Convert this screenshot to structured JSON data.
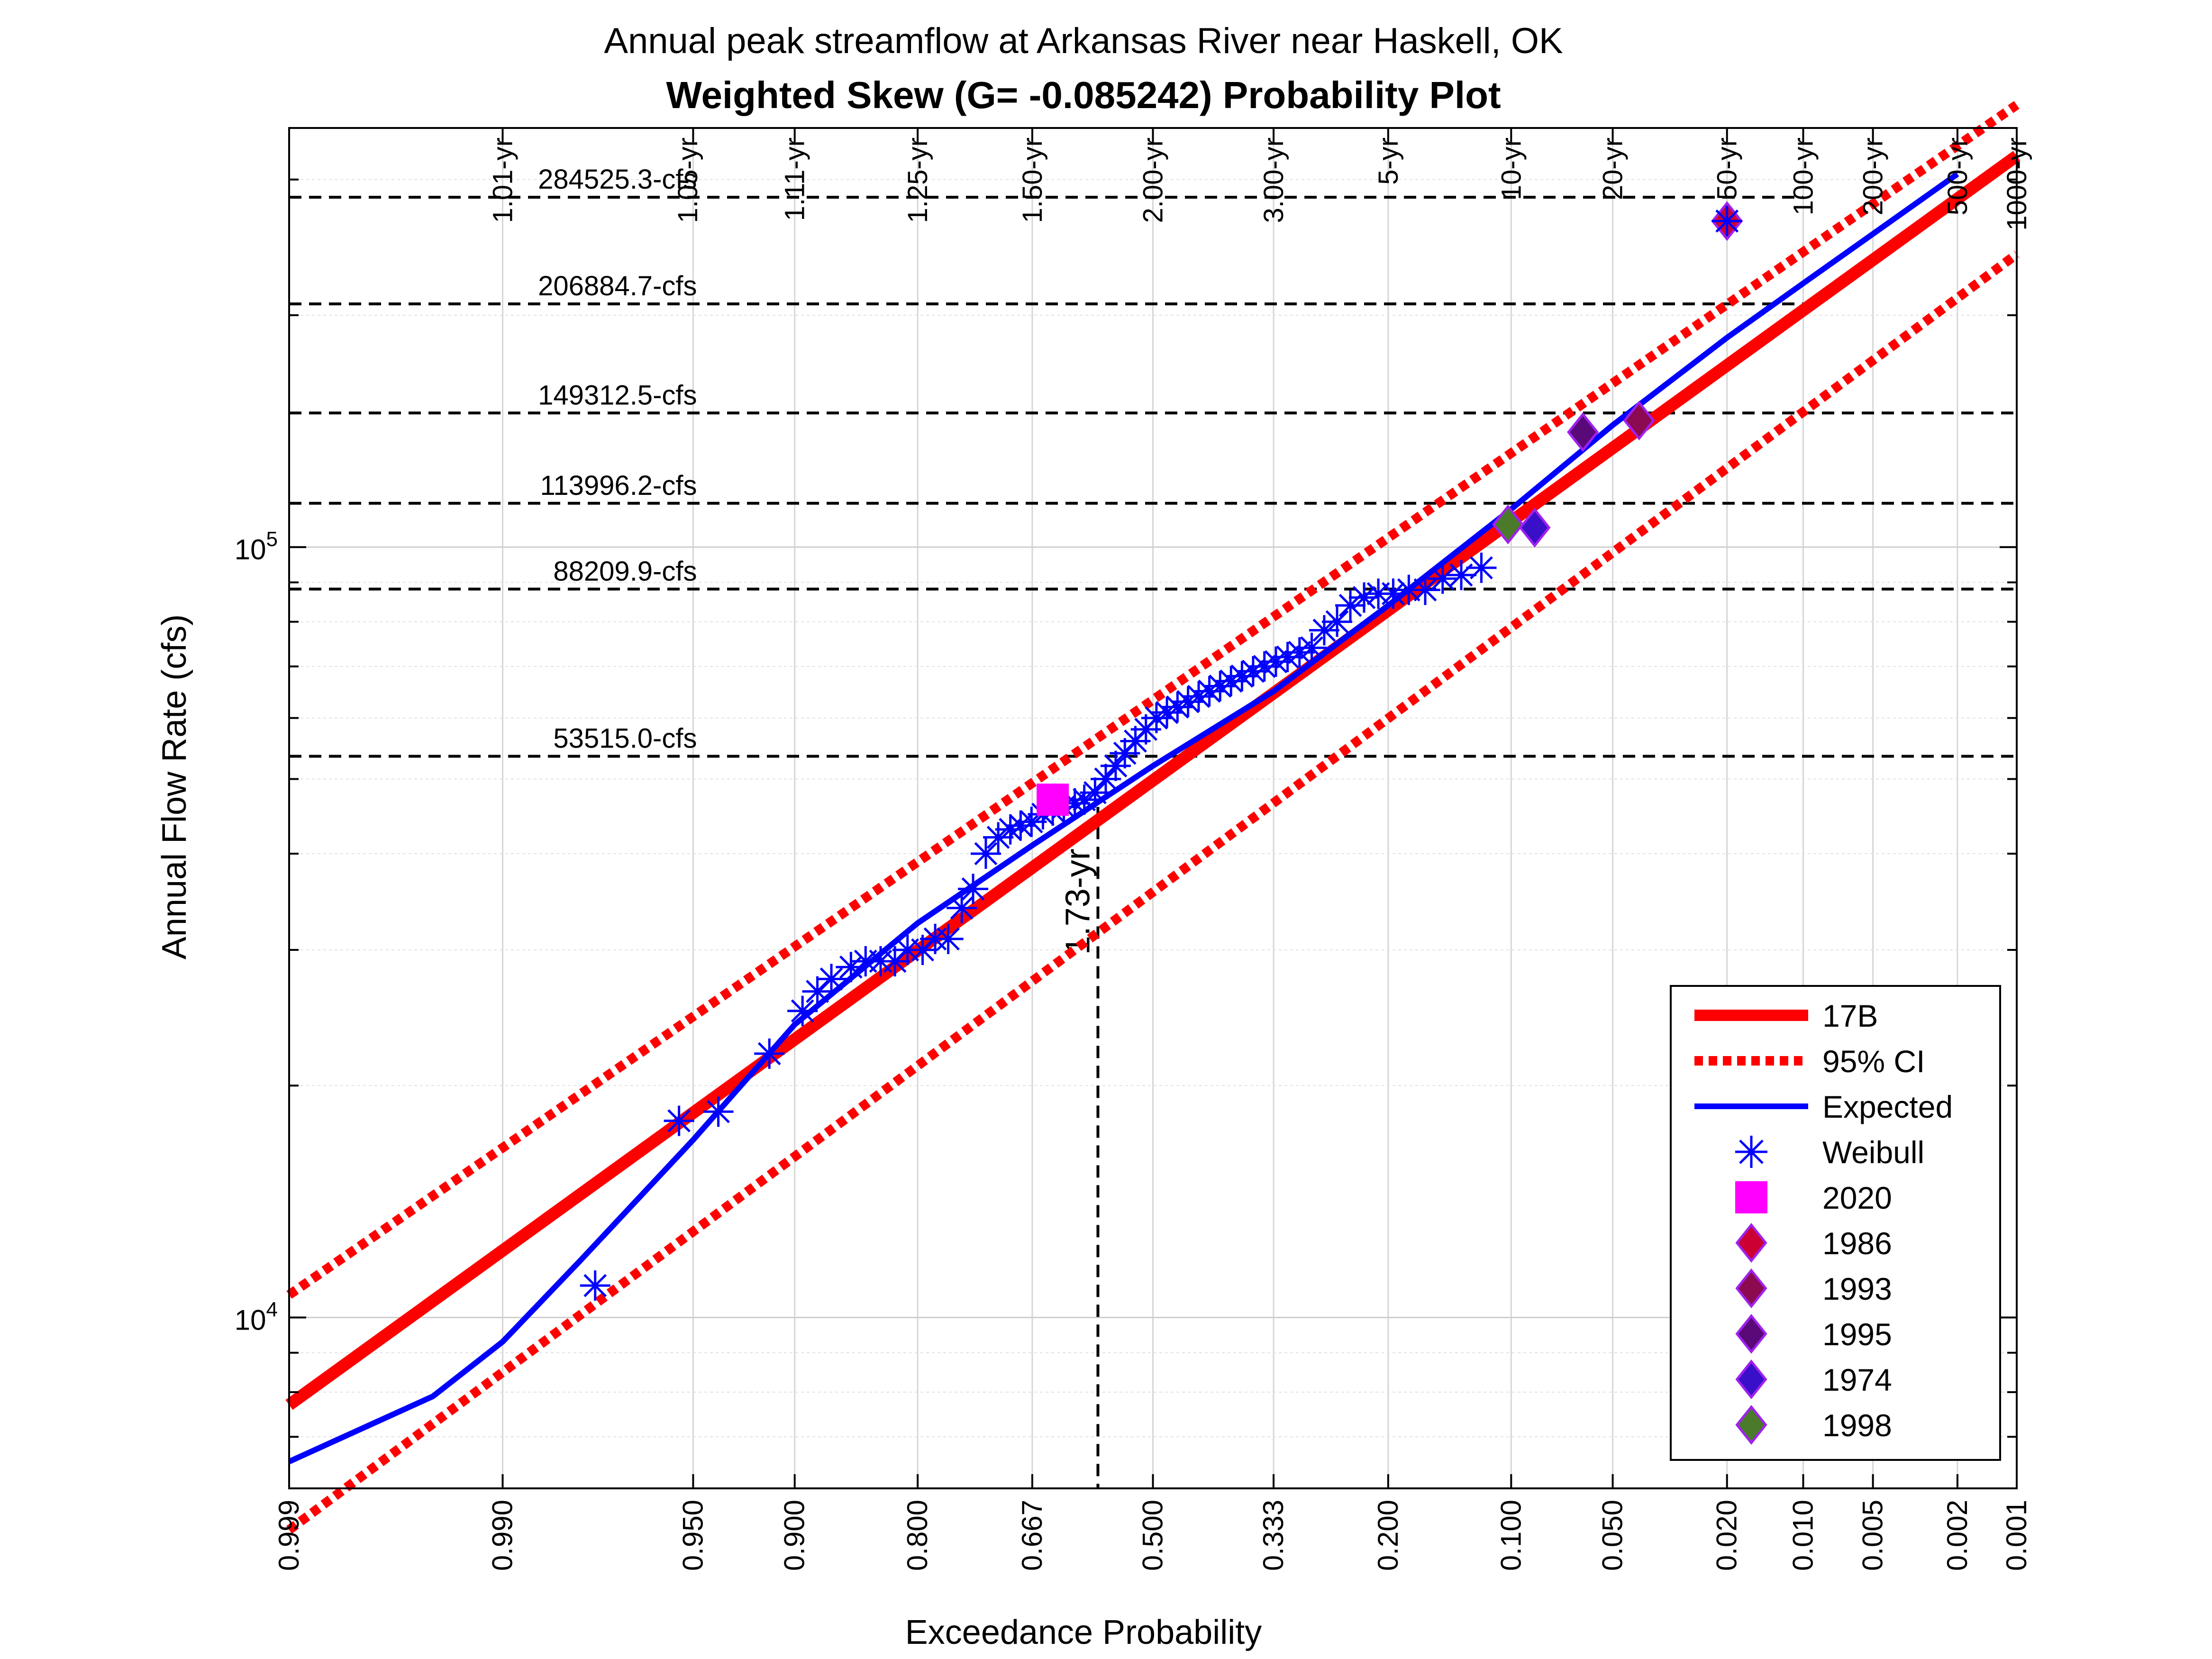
{
  "chart_data": {
    "type": "scatter",
    "title": "Annual peak streamflow at Arkansas River near Haskell, OK",
    "subtitle": "Weighted Skew (G= -0.085242) Probability Plot",
    "xlabel": "Exceedance Probability",
    "ylabel": "Annual Flow Rate (cfs)",
    "x_scale": "normal-probability",
    "y_scale": "log",
    "ylim": [
      6000,
      350000
    ],
    "xlim": [
      0.999,
      0.001
    ],
    "grid": true,
    "legend_position": "bottom-right",
    "x_ticks": [
      {
        "p": 0.999,
        "label": "0.999"
      },
      {
        "p": 0.99,
        "label": "0.990"
      },
      {
        "p": 0.95,
        "label": "0.950"
      },
      {
        "p": 0.9,
        "label": "0.900"
      },
      {
        "p": 0.8,
        "label": "0.800"
      },
      {
        "p": 0.667,
        "label": "0.667"
      },
      {
        "p": 0.5,
        "label": "0.500"
      },
      {
        "p": 0.333,
        "label": "0.333"
      },
      {
        "p": 0.2,
        "label": "0.200"
      },
      {
        "p": 0.1,
        "label": "0.100"
      },
      {
        "p": 0.05,
        "label": "0.050"
      },
      {
        "p": 0.02,
        "label": "0.020"
      },
      {
        "p": 0.01,
        "label": "0.010"
      },
      {
        "p": 0.005,
        "label": "0.005"
      },
      {
        "p": 0.002,
        "label": "0.002"
      },
      {
        "p": 0.001,
        "label": "0.001"
      }
    ],
    "return_periods": [
      {
        "p": 0.99,
        "label": "1.01-yr"
      },
      {
        "p": 0.952,
        "label": "1.05-yr"
      },
      {
        "p": 0.9,
        "label": "1.11-yr"
      },
      {
        "p": 0.8,
        "label": "1.25-yr"
      },
      {
        "p": 0.667,
        "label": "1.50-yr"
      },
      {
        "p": 0.5,
        "label": "2.00-yr"
      },
      {
        "p": 0.333,
        "label": "3.00-yr"
      },
      {
        "p": 0.2,
        "label": "5-yr"
      },
      {
        "p": 0.1,
        "label": "10-yr"
      },
      {
        "p": 0.05,
        "label": "20-yr"
      },
      {
        "p": 0.02,
        "label": "50-yr"
      },
      {
        "p": 0.01,
        "label": "100-yr"
      },
      {
        "p": 0.005,
        "label": "200-yr"
      },
      {
        "p": 0.002,
        "label": "500-yr"
      },
      {
        "p": 0.001,
        "label": "1000-yr"
      }
    ],
    "y_ticks": [
      {
        "value": 10000,
        "base": "10",
        "exp": "4"
      },
      {
        "value": 100000,
        "base": "10",
        "exp": "5"
      }
    ],
    "flow_lines": [
      {
        "value": 284525.3,
        "p_end": 0.01,
        "label": "284525.3-cfs"
      },
      {
        "value": 206884.7,
        "p_end": 0.01,
        "label": "206884.7-cfs"
      },
      {
        "value": 149312.5,
        "p_end": 0.001,
        "label": "149312.5-cfs"
      },
      {
        "value": 113996.2,
        "p_end": 0.001,
        "label": "113996.2-cfs"
      },
      {
        "value": 88209.9,
        "p_end": 0.001,
        "label": "88209.9-cfs"
      },
      {
        "value": 53515.0,
        "p_end": 0.001,
        "label": "53515.0-cfs"
      }
    ],
    "marker_line": {
      "p": 0.578,
      "value": 46000,
      "label": "1.73-yr"
    },
    "series": [
      {
        "name": "17B",
        "kind": "line",
        "color": "#ff0000",
        "points": [
          [
            0.999,
            7700
          ],
          [
            0.001,
            322000
          ]
        ]
      },
      {
        "name": "95% CI",
        "kind": "dotted",
        "color": "#ff0000",
        "upper": [
          [
            0.999,
            10700
          ],
          [
            0.001,
            375000
          ]
        ],
        "lower": [
          [
            0.999,
            5300
          ],
          [
            0.001,
            240000
          ]
        ]
      },
      {
        "name": "Expected",
        "kind": "line",
        "color": "#0000ff",
        "points": [
          [
            0.999,
            6500
          ],
          [
            0.995,
            7900
          ],
          [
            0.99,
            9300
          ],
          [
            0.98,
            11800
          ],
          [
            0.95,
            17000
          ],
          [
            0.9,
            24000
          ],
          [
            0.8,
            32500
          ],
          [
            0.667,
            41000
          ],
          [
            0.5,
            52000
          ],
          [
            0.333,
            65000
          ],
          [
            0.2,
            84000
          ],
          [
            0.1,
            112000
          ],
          [
            0.05,
            144000
          ],
          [
            0.02,
            187000
          ],
          [
            0.01,
            220000
          ],
          [
            0.005,
            255000
          ],
          [
            0.002,
            305000
          ]
        ]
      },
      {
        "name": "Weibull",
        "kind": "scatter",
        "color": "#0000ff",
        "points": [
          [
            0.977,
            11000
          ],
          [
            0.955,
            18000
          ],
          [
            0.94,
            18500
          ],
          [
            0.915,
            22000
          ],
          [
            0.895,
            25000
          ],
          [
            0.885,
            26500
          ],
          [
            0.875,
            27500
          ],
          [
            0.86,
            28500
          ],
          [
            0.848,
            29000
          ],
          [
            0.835,
            29000
          ],
          [
            0.822,
            29000
          ],
          [
            0.81,
            30000
          ],
          [
            0.795,
            30000
          ],
          [
            0.782,
            31000
          ],
          [
            0.768,
            31000
          ],
          [
            0.753,
            34000
          ],
          [
            0.74,
            36000
          ],
          [
            0.725,
            40000
          ],
          [
            0.71,
            42000
          ],
          [
            0.695,
            43000
          ],
          [
            0.682,
            43500
          ],
          [
            0.668,
            44000
          ],
          [
            0.653,
            45000
          ],
          [
            0.64,
            45500
          ],
          [
            0.625,
            46000
          ],
          [
            0.61,
            46500
          ],
          [
            0.597,
            47000
          ],
          [
            0.582,
            48000
          ],
          [
            0.567,
            50000
          ],
          [
            0.553,
            52000
          ],
          [
            0.54,
            54000
          ],
          [
            0.525,
            56000
          ],
          [
            0.51,
            58000
          ],
          [
            0.495,
            60000
          ],
          [
            0.48,
            61000
          ],
          [
            0.465,
            62000
          ],
          [
            0.45,
            63000
          ],
          [
            0.435,
            64000
          ],
          [
            0.42,
            65000
          ],
          [
            0.405,
            66000
          ],
          [
            0.39,
            67000
          ],
          [
            0.375,
            68000
          ],
          [
            0.36,
            69000
          ],
          [
            0.345,
            70000
          ],
          [
            0.33,
            71000
          ],
          [
            0.315,
            72000
          ],
          [
            0.3,
            73000
          ],
          [
            0.285,
            74000
          ],
          [
            0.27,
            78000
          ],
          [
            0.255,
            80000
          ],
          [
            0.24,
            84000
          ],
          [
            0.225,
            86000
          ],
          [
            0.21,
            87000
          ],
          [
            0.195,
            87000
          ],
          [
            0.18,
            88000
          ],
          [
            0.165,
            88000
          ],
          [
            0.15,
            91000
          ],
          [
            0.135,
            92000
          ],
          [
            0.12,
            94000
          ]
        ]
      },
      {
        "name": "2020",
        "kind": "square",
        "color": "#ff00ff",
        "points": [
          [
            0.64,
            47000
          ]
        ]
      },
      {
        "name": "1986",
        "kind": "diamond",
        "color": "#cc0033",
        "points": [
          [
            0.02,
            265000
          ]
        ]
      },
      {
        "name": "1993",
        "kind": "diamond",
        "color": "#8b0a50",
        "points": [
          [
            0.041,
            146000
          ]
        ]
      },
      {
        "name": "1995",
        "kind": "diamond",
        "color": "#5a0a78",
        "points": [
          [
            0.062,
            141000
          ]
        ]
      },
      {
        "name": "1974",
        "kind": "diamond",
        "color": "#3a0fc8",
        "points": [
          [
            0.086,
            106000
          ]
        ]
      },
      {
        "name": "1998",
        "kind": "diamond",
        "color": "#4a7a2a",
        "points": [
          [
            0.102,
            107000
          ]
        ]
      }
    ]
  }
}
